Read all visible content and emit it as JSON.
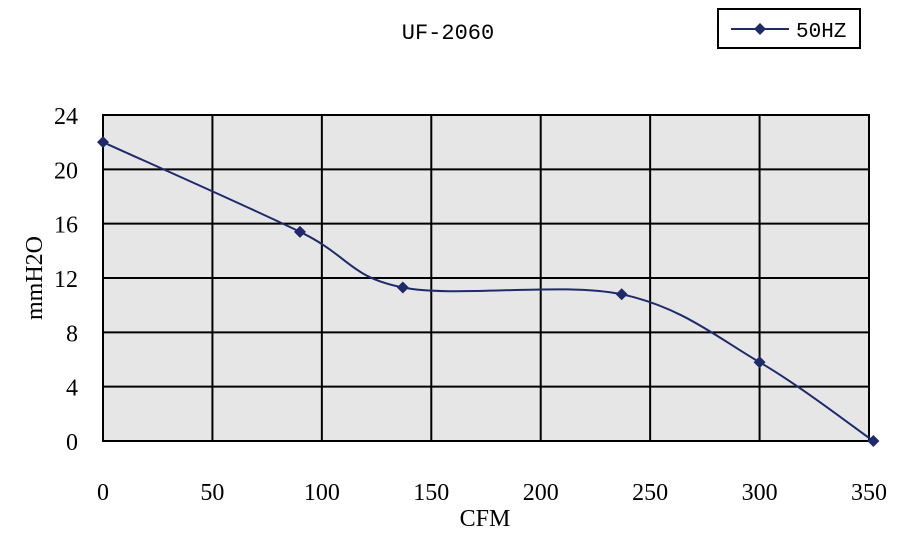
{
  "chart_data": {
    "type": "line",
    "title": "UF-2060",
    "xlabel": "CFM",
    "ylabel": "mmH2O",
    "xlim": [
      0,
      350
    ],
    "ylim": [
      0,
      24
    ],
    "x_ticks": [
      "0",
      "50",
      "100",
      "150",
      "200",
      "250",
      "300",
      "350"
    ],
    "y_ticks": [
      "0",
      "4",
      "8",
      "12",
      "16",
      "20",
      "24"
    ],
    "grid": true,
    "legend_position": "top-right",
    "series": [
      {
        "name": "50HZ",
        "color": "#1f2a6b",
        "x": [
          0,
          90,
          137,
          237,
          300,
          352
        ],
        "y": [
          22,
          15.4,
          11.3,
          10.8,
          5.8,
          0
        ]
      }
    ],
    "plot_background": "#e6e6e6",
    "grid_color": "#000000"
  }
}
